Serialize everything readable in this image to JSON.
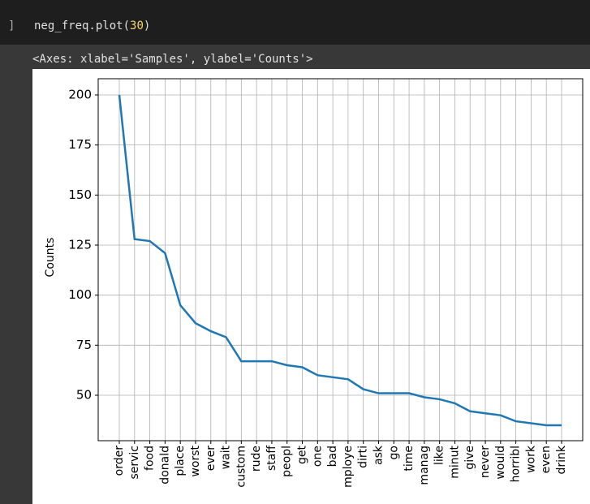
{
  "cell": {
    "bracket": "]",
    "code": [
      "neg_freq.plot(",
      "30",
      ")"
    ],
    "output_text": "<Axes: xlabel='Samples', ylabel='Counts'>"
  },
  "chart_data": {
    "type": "line",
    "ylabel": "Counts",
    "categories": [
      "order",
      "servic",
      "food",
      "donald",
      "place",
      "worst",
      "ever",
      "wait",
      "custom",
      "rude",
      "staff",
      "peopl",
      "get",
      "one",
      "bad",
      "mploye",
      "dirti",
      "ask",
      "go",
      "time",
      "manag",
      "like",
      "minut",
      "give",
      "never",
      "would",
      "horribl",
      "work",
      "even",
      "drink"
    ],
    "values": [
      200,
      128,
      127,
      121,
      95,
      86,
      82,
      79,
      67,
      67,
      67,
      65,
      64,
      60,
      59,
      58,
      53,
      51,
      51,
      51,
      49,
      48,
      46,
      42,
      41,
      40,
      37,
      36,
      35,
      35
    ],
    "color": "#1f77b4",
    "ylim": [
      27.3,
      208.1
    ],
    "yticks": [
      50,
      75,
      100,
      125,
      150,
      175,
      200
    ],
    "grid": true
  }
}
